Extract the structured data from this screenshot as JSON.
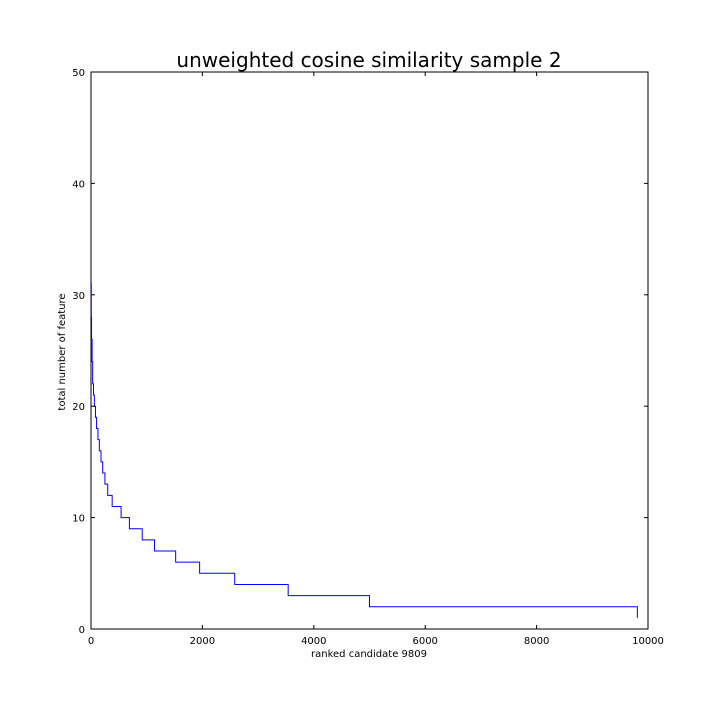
{
  "chart_data": {
    "type": "line",
    "title": "unweighted cosine similarity sample 2",
    "xlabel": "ranked candidate 9809",
    "ylabel": "total number of feature",
    "xlim": [
      0,
      10000
    ],
    "ylim": [
      0,
      50
    ],
    "x_ticks": [
      0,
      2000,
      4000,
      6000,
      8000,
      10000
    ],
    "y_ticks": [
      0,
      10,
      20,
      30,
      40,
      50
    ],
    "x_tick_labels": [
      "0",
      "2000",
      "4000",
      "6000",
      "8000",
      "10000"
    ],
    "y_tick_labels": [
      "0",
      "10",
      "20",
      "30",
      "40",
      "50"
    ],
    "grid": false,
    "line_color": "#0000ff",
    "series": [
      {
        "step": "post",
        "x": [
          0,
          5,
          10,
          20,
          30,
          45,
          60,
          80,
          100,
          125,
          150,
          180,
          210,
          250,
          300,
          380,
          540,
          690,
          920,
          1140,
          1520,
          1950,
          2580,
          3540,
          5000,
          9809
        ],
        "y": [
          31,
          28,
          26,
          24,
          22,
          21,
          20,
          19,
          18,
          17,
          16,
          15,
          14,
          13,
          12,
          11,
          10,
          9,
          8,
          7,
          6,
          5,
          4,
          3,
          2,
          1
        ]
      }
    ]
  }
}
